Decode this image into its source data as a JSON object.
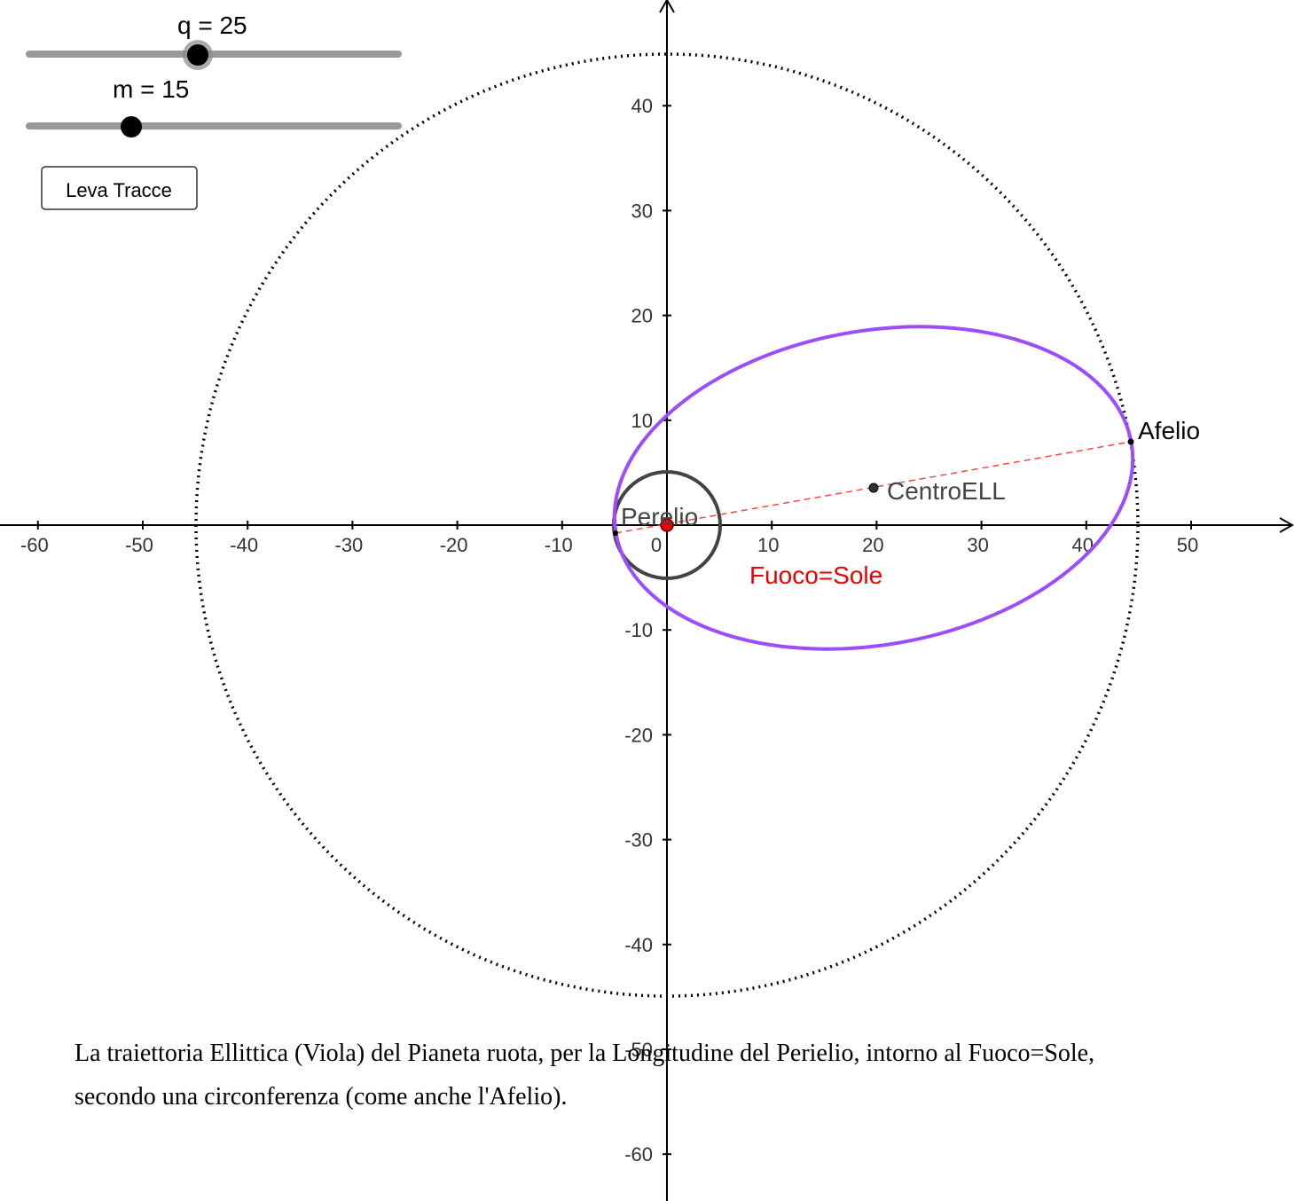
{
  "sliders": [
    {
      "label": "q = 25"
    },
    {
      "label": "m = 15"
    }
  ],
  "button": "Leva Tracce",
  "axes": {
    "xticks": [
      -60,
      -50,
      -40,
      -30,
      -20,
      -10,
      0,
      10,
      20,
      30,
      40,
      50
    ],
    "yticks": [
      40,
      30,
      20,
      10,
      -10,
      -20,
      -30,
      -40,
      -50,
      -60
    ]
  },
  "points": {
    "perielio": "Perelio",
    "centro": "CentroELL",
    "afelio": "Afelio",
    "fuoco": "Fuoco=Sole"
  },
  "caption": [
    "La traiettoria Ellittica (Viola) del Pianeta ruota, per la Longitudine  del Perielio, intorno al Fuoco=Sole,",
    "secondo una circonferenza (come anche l'Afelio)."
  ]
}
